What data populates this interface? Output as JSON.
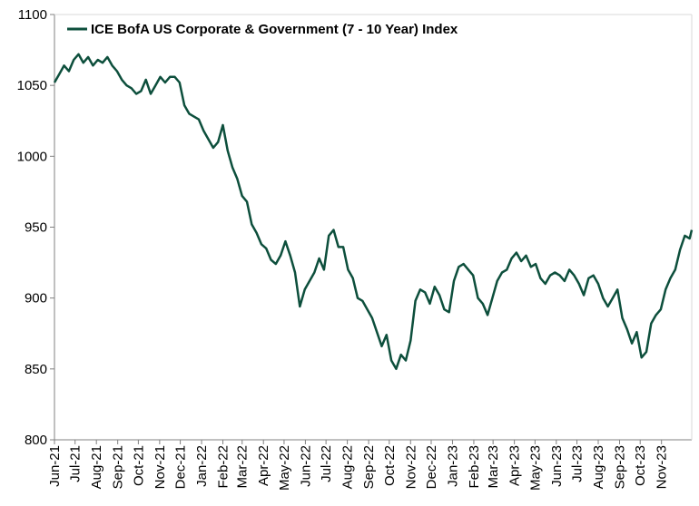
{
  "chart_data": {
    "type": "line",
    "title": "",
    "xlabel": "",
    "ylabel": "",
    "ylim": [
      800,
      1100
    ],
    "yticks": [
      800,
      850,
      900,
      950,
      1000,
      1050,
      1100
    ],
    "xticks": [
      "Jun-21",
      "Jul-21",
      "Aug-21",
      "Sep-21",
      "Oct-21",
      "Nov-21",
      "Dec-21",
      "Jan-22",
      "Feb-22",
      "Mar-22",
      "Apr-22",
      "May-22",
      "Jun-22",
      "Jul-22",
      "Aug-22",
      "Sep-22",
      "Oct-22",
      "Nov-22",
      "Dec-22",
      "Jan-23",
      "Feb-23",
      "Mar-23",
      "Apr-23",
      "May-23",
      "Jun-23",
      "Jul-23",
      "Aug-23",
      "Sep-23",
      "Oct-23",
      "Nov-23"
    ],
    "grid": false,
    "legend_position": "top-left",
    "line_color": "#0d4f3c",
    "series": [
      {
        "name": "ICE BofA US Corporate & Government (7 - 10 Year) Index",
        "x": [
          "2021-06-01",
          "2021-06-08",
          "2021-06-15",
          "2021-06-22",
          "2021-06-29",
          "2021-07-06",
          "2021-07-13",
          "2021-07-20",
          "2021-07-27",
          "2021-08-03",
          "2021-08-10",
          "2021-08-17",
          "2021-08-24",
          "2021-08-31",
          "2021-09-07",
          "2021-09-14",
          "2021-09-21",
          "2021-09-28",
          "2021-10-05",
          "2021-10-12",
          "2021-10-19",
          "2021-10-26",
          "2021-11-02",
          "2021-11-09",
          "2021-11-16",
          "2021-11-23",
          "2021-11-30",
          "2021-12-07",
          "2021-12-14",
          "2021-12-21",
          "2021-12-28",
          "2022-01-04",
          "2022-01-11",
          "2022-01-18",
          "2022-01-25",
          "2022-02-01",
          "2022-02-08",
          "2022-02-15",
          "2022-02-22",
          "2022-03-01",
          "2022-03-08",
          "2022-03-15",
          "2022-03-22",
          "2022-03-29",
          "2022-04-05",
          "2022-04-12",
          "2022-04-19",
          "2022-04-26",
          "2022-05-03",
          "2022-05-10",
          "2022-05-17",
          "2022-05-24",
          "2022-05-31",
          "2022-06-07",
          "2022-06-14",
          "2022-06-21",
          "2022-06-28",
          "2022-07-05",
          "2022-07-12",
          "2022-07-19",
          "2022-07-26",
          "2022-08-02",
          "2022-08-09",
          "2022-08-16",
          "2022-08-23",
          "2022-08-30",
          "2022-09-06",
          "2022-09-13",
          "2022-09-20",
          "2022-09-27",
          "2022-10-04",
          "2022-10-11",
          "2022-10-18",
          "2022-10-25",
          "2022-11-01",
          "2022-11-08",
          "2022-11-15",
          "2022-11-22",
          "2022-11-29",
          "2022-12-06",
          "2022-12-13",
          "2022-12-20",
          "2022-12-27",
          "2023-01-03",
          "2023-01-10",
          "2023-01-17",
          "2023-01-24",
          "2023-01-31",
          "2023-02-07",
          "2023-02-14",
          "2023-02-21",
          "2023-02-28",
          "2023-03-07",
          "2023-03-14",
          "2023-03-21",
          "2023-03-28",
          "2023-04-04",
          "2023-04-11",
          "2023-04-18",
          "2023-04-25",
          "2023-05-02",
          "2023-05-09",
          "2023-05-16",
          "2023-05-23",
          "2023-05-30",
          "2023-06-06",
          "2023-06-13",
          "2023-06-20",
          "2023-06-27",
          "2023-07-04",
          "2023-07-11",
          "2023-07-18",
          "2023-07-25",
          "2023-08-01",
          "2023-08-08",
          "2023-08-15",
          "2023-08-22",
          "2023-08-29",
          "2023-09-05",
          "2023-09-12",
          "2023-09-19",
          "2023-09-26",
          "2023-10-03",
          "2023-10-10",
          "2023-10-17",
          "2023-10-24",
          "2023-10-31",
          "2023-11-07",
          "2023-11-14",
          "2023-11-21",
          "2023-11-28",
          "2023-12-05",
          "2023-12-12",
          "2023-12-15"
        ],
        "values": [
          1052,
          1058,
          1064,
          1060,
          1068,
          1072,
          1066,
          1070,
          1064,
          1068,
          1066,
          1070,
          1064,
          1060,
          1054,
          1050,
          1048,
          1044,
          1046,
          1054,
          1044,
          1050,
          1056,
          1052,
          1056,
          1056,
          1052,
          1036,
          1030,
          1028,
          1026,
          1018,
          1012,
          1006,
          1010,
          1022,
          1004,
          992,
          984,
          972,
          968,
          952,
          946,
          938,
          935,
          927,
          924,
          930,
          940,
          930,
          918,
          894,
          906,
          912,
          918,
          928,
          920,
          944,
          948,
          936,
          936,
          920,
          914,
          900,
          898,
          892,
          886,
          876,
          866,
          874,
          856,
          850,
          860,
          856,
          870,
          898,
          906,
          904,
          896,
          908,
          902,
          892,
          890,
          912,
          922,
          924,
          920,
          916,
          900,
          896,
          888,
          900,
          912,
          918,
          920,
          928,
          932,
          926,
          930,
          922,
          924,
          914,
          910,
          916,
          918,
          916,
          912,
          920,
          916,
          910,
          902,
          914,
          916,
          910,
          900,
          894,
          900,
          906,
          886,
          878,
          868,
          876,
          858,
          862,
          882,
          888,
          892,
          906,
          914,
          920,
          934,
          944,
          942,
          948
        ]
      }
    ]
  }
}
